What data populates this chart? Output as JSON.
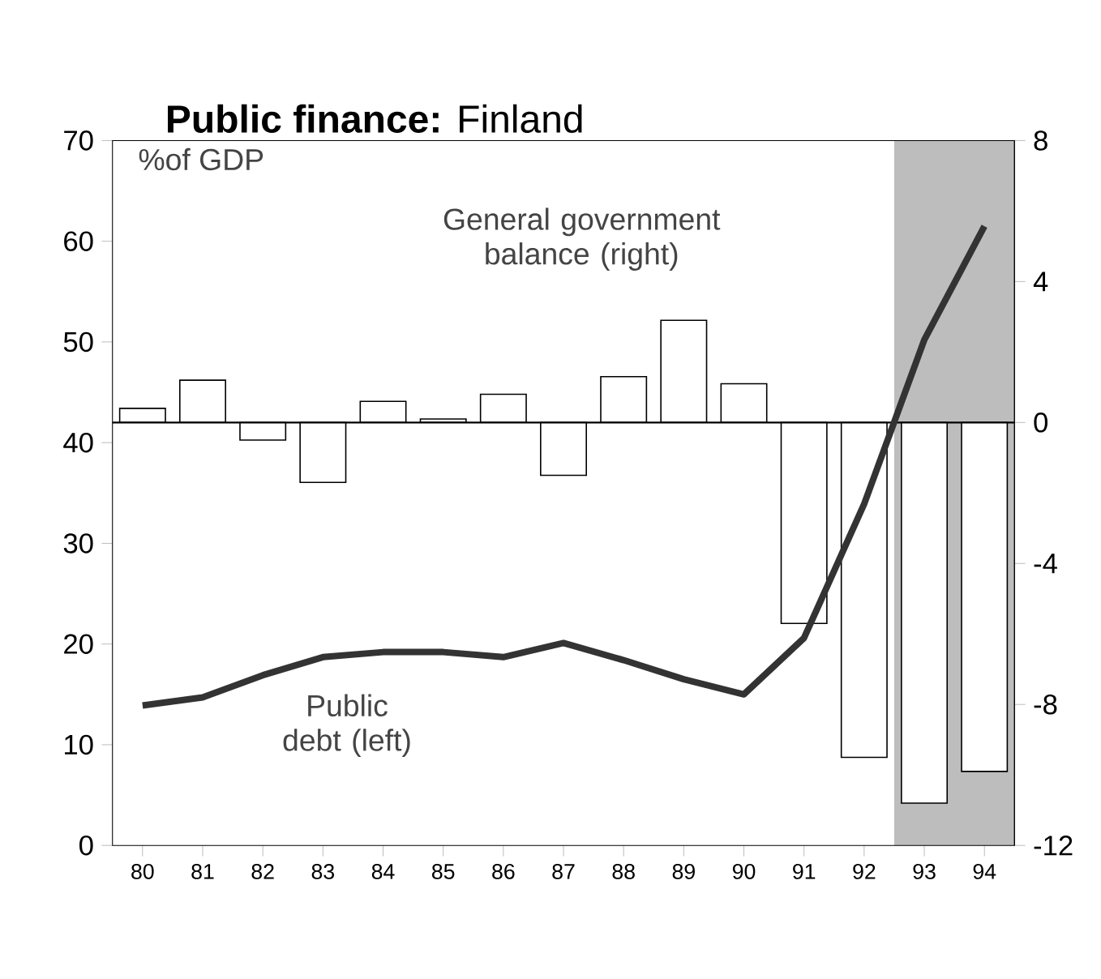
{
  "chart_data": {
    "type": "bar",
    "title": "**Public finance:** Finland",
    "ylabel": "%of GDP",
    "categories": [
      "80",
      "81",
      "82",
      "83",
      "84",
      "85",
      "86",
      "87",
      "88",
      "89",
      "90",
      "91",
      "92",
      "93",
      "94"
    ],
    "series": [
      {
        "name": "General government balance (right)",
        "axis": "y2",
        "color": "#ffffff",
        "values": [
          0.4,
          1.2,
          -0.5,
          -1.7,
          0.6,
          0.1,
          0.8,
          -1.5,
          1.3,
          2.9,
          1.1,
          -5.7,
          -9.5,
          -10.8,
          -9.9
        ]
      },
      {
        "name": "Public debt (left)",
        "type": "line",
        "color": "#333333",
        "line_style": "solid",
        "values": [
          13.9,
          14.7,
          16.9,
          18.7,
          19.2,
          19.2,
          18.7,
          20.1,
          18.4,
          16.5,
          15.0,
          20.6,
          33.9,
          50.2,
          61.5
        ]
      }
    ],
    "ylim": [
      0,
      70
    ],
    "yticks": [
      0,
      10,
      20,
      30,
      40,
      50,
      60,
      70
    ],
    "y2lim": [
      -12,
      8
    ],
    "y2ticks": [
      -12,
      -8,
      -4,
      0,
      4,
      8
    ],
    "ref_lines": [
      {
        "axis": "y2",
        "value": 0
      }
    ],
    "grid": false
  }
}
